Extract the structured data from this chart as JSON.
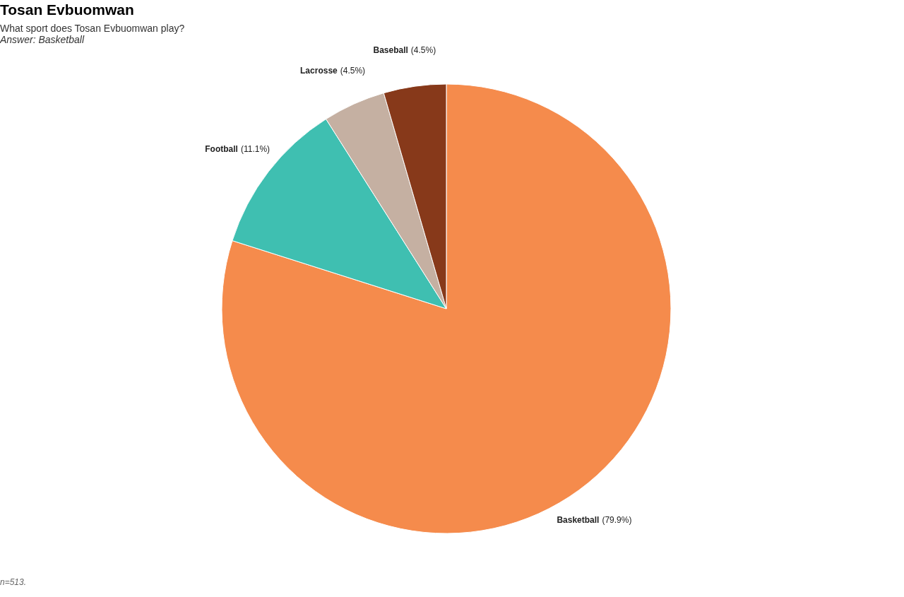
{
  "chart_data": {
    "type": "pie",
    "title": "Tosan Evbuomwan",
    "subtitle": "What sport does Tosan Evbuomwan play?",
    "categories": [
      "Basketball",
      "Football",
      "Lacrosse",
      "Baseball"
    ],
    "values": [
      79.9,
      11.1,
      4.5,
      4.5
    ],
    "colors": [
      "#f58b4c",
      "#3fbfb1",
      "#c5b0a2",
      "#87391a"
    ],
    "value_labels": [
      "(79.9%)",
      "(11.1%)",
      "(4.5%)",
      "(4.5%)"
    ],
    "annotations": [
      "Answer: Basketball",
      "n=513."
    ]
  }
}
